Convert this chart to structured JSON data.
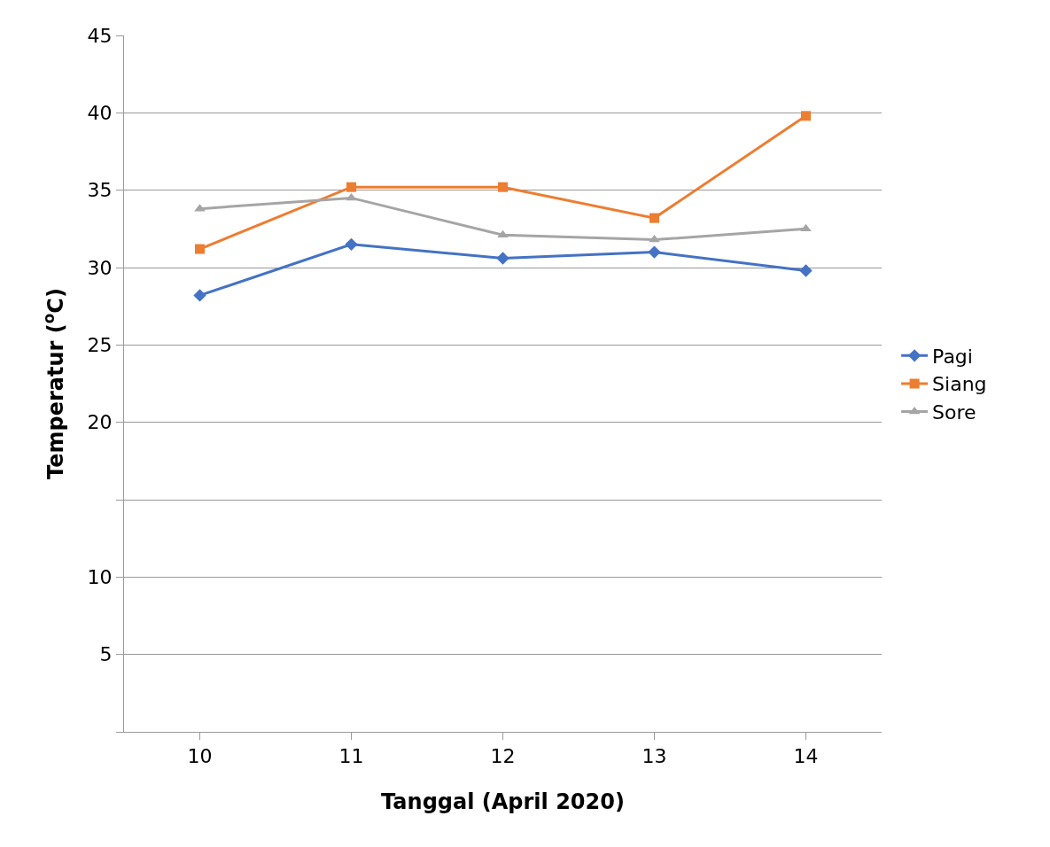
{
  "chart_data": {
    "type": "line",
    "xlabel": "Tanggal (April 2020)",
    "ylabel": "Temperatur ($^{o}$C)",
    "categories": [
      "10",
      "11",
      "12",
      "13",
      "14"
    ],
    "series": [
      {
        "name": "Pagi",
        "color": "#4472c4",
        "marker": "diamond",
        "values": [
          28.2,
          31.5,
          30.6,
          31.0,
          29.8
        ]
      },
      {
        "name": "Siang",
        "color": "#ed7d31",
        "marker": "square",
        "values": [
          31.2,
          35.2,
          35.2,
          33.2,
          39.8
        ]
      },
      {
        "name": "Sore",
        "color": "#a5a5a5",
        "marker": "triangle",
        "values": [
          33.8,
          34.5,
          32.1,
          31.8,
          32.5
        ]
      }
    ],
    "ylim": [
      0,
      45
    ],
    "yticks": [
      {
        "value": 0,
        "label": null
      },
      5,
      10,
      {
        "value": 15,
        "label": null
      },
      20,
      25,
      30,
      35,
      40,
      45
    ],
    "grid": "y",
    "legend": "right",
    "line_style": "solid"
  }
}
